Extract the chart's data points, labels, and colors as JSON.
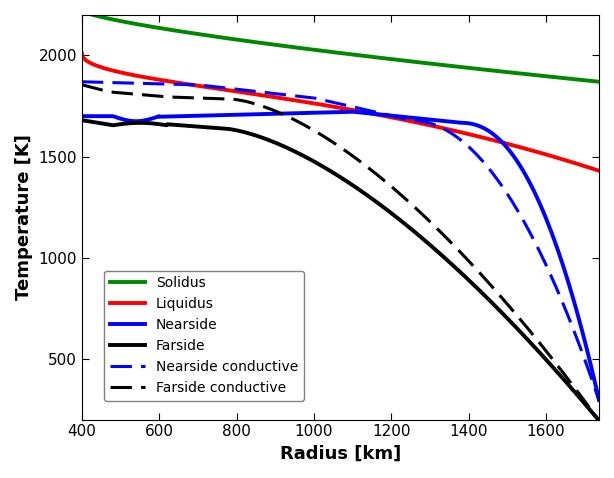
{
  "xlim": [
    400,
    1737
  ],
  "ylim": [
    200,
    2200
  ],
  "xlabel": "Radius [km]",
  "ylabel": "Temperature [K]",
  "xticks": [
    400,
    600,
    800,
    1000,
    1200,
    1400,
    1600
  ],
  "yticks": [
    500,
    1000,
    1500,
    2000
  ],
  "colors": {
    "solidus": "#008800",
    "liquidus": "#ff0000",
    "nearside": "#0000ff",
    "farside": "#000000",
    "nearside_cond": "#0000ff",
    "farside_cond": "#000000"
  },
  "linewidths": {
    "solidus": 2.8,
    "liquidus": 2.8,
    "nearside": 2.8,
    "farside": 2.8,
    "nearside_cond": 2.2,
    "farside_cond": 2.2
  },
  "legend_labels": [
    "Solidus",
    "Liquidus",
    "Nearside",
    "Farside",
    "Nearside conductive",
    "Farside conductive"
  ],
  "background_color": "#ffffff"
}
